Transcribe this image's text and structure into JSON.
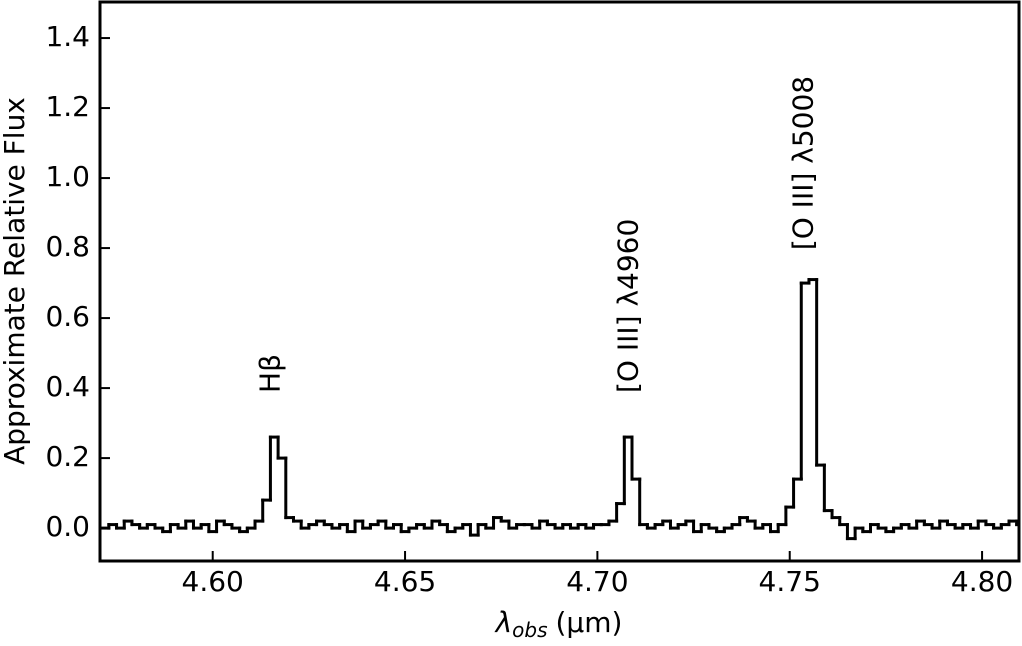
{
  "chart_data": {
    "type": "step",
    "ylabel": "Approximate Relative Flux",
    "xlabel": {
      "symbol": "λ",
      "subscript": "obs",
      "unit": "(μm)"
    },
    "x": [
      4.572,
      4.574,
      4.576,
      4.578,
      4.58,
      4.582,
      4.584,
      4.586,
      4.588,
      4.59,
      4.592,
      4.594,
      4.596,
      4.598,
      4.6,
      4.602,
      4.604,
      4.606,
      4.608,
      4.61,
      4.612,
      4.614,
      4.616,
      4.618,
      4.62,
      4.622,
      4.624,
      4.626,
      4.628,
      4.63,
      4.632,
      4.634,
      4.636,
      4.638,
      4.64,
      4.642,
      4.644,
      4.646,
      4.648,
      4.65,
      4.652,
      4.654,
      4.656,
      4.658,
      4.66,
      4.662,
      4.664,
      4.666,
      4.668,
      4.67,
      4.672,
      4.674,
      4.676,
      4.678,
      4.68,
      4.682,
      4.684,
      4.686,
      4.688,
      4.69,
      4.692,
      4.694,
      4.696,
      4.698,
      4.7,
      4.702,
      4.704,
      4.706,
      4.708,
      4.71,
      4.712,
      4.714,
      4.716,
      4.718,
      4.72,
      4.722,
      4.724,
      4.726,
      4.728,
      4.73,
      4.732,
      4.734,
      4.736,
      4.738,
      4.74,
      4.742,
      4.744,
      4.746,
      4.748,
      4.75,
      4.752,
      4.754,
      4.756,
      4.758,
      4.76,
      4.762,
      4.764,
      4.766,
      4.768,
      4.77,
      4.772,
      4.774,
      4.776,
      4.778,
      4.78,
      4.782,
      4.784,
      4.786,
      4.788,
      4.79,
      4.792,
      4.794,
      4.796,
      4.798,
      4.8,
      4.802,
      4.804,
      4.806,
      4.808,
      4.81
    ],
    "series": [
      {
        "color": "#000000",
        "values": [
          0.0,
          0.01,
          0.0,
          0.02,
          0.01,
          0.0,
          0.01,
          0.0,
          -0.01,
          0.01,
          0.0,
          0.02,
          0.0,
          0.01,
          -0.01,
          0.02,
          0.01,
          0.0,
          -0.01,
          0.0,
          0.02,
          0.08,
          0.26,
          0.2,
          0.03,
          0.02,
          0.0,
          0.01,
          0.02,
          0.01,
          0.0,
          0.01,
          -0.01,
          0.02,
          0.0,
          0.01,
          0.02,
          0.0,
          0.01,
          -0.01,
          0.0,
          0.01,
          0.0,
          0.02,
          0.01,
          -0.01,
          0.0,
          0.01,
          -0.02,
          0.01,
          0.0,
          0.03,
          0.02,
          0.0,
          0.01,
          0.01,
          0.0,
          0.02,
          0.01,
          0.0,
          0.01,
          0.0,
          0.01,
          0.0,
          0.01,
          0.01,
          0.02,
          0.07,
          0.26,
          0.14,
          0.01,
          0.0,
          0.01,
          0.02,
          0.0,
          0.01,
          0.02,
          -0.01,
          0.01,
          0.0,
          -0.01,
          0.0,
          0.01,
          0.03,
          0.02,
          0.0,
          0.01,
          -0.01,
          0.01,
          0.06,
          0.14,
          0.7,
          0.71,
          0.18,
          0.05,
          0.03,
          0.01,
          -0.03,
          0.0,
          -0.01,
          0.01,
          0.0,
          -0.01,
          0.0,
          0.01,
          0.0,
          0.02,
          0.01,
          0.0,
          0.02,
          0.01,
          0.0,
          0.01,
          0.0,
          0.02,
          0.01,
          0.0,
          0.01,
          0.02,
          0.01
        ]
      }
    ],
    "xlim": [
      4.5707,
      4.8096
    ],
    "ylim": [
      -0.094,
      1.503
    ],
    "xticks": [
      {
        "value": 4.6,
        "label": "4.60"
      },
      4.65,
      {
        "value": 4.7,
        "label": "4.70"
      },
      4.75,
      {
        "value": 4.8,
        "label": "4.80"
      }
    ],
    "yticks": [
      {
        "value": 0,
        "label": "0.0"
      },
      0.2,
      0.4,
      0.6,
      0.8,
      {
        "value": 1,
        "label": "1.0"
      },
      1.2,
      1.4
    ],
    "annotations": [
      {
        "text": "Hβ",
        "x": 4.6153,
        "y": 0.386
      },
      {
        "text": "[O III] λ4960",
        "x": 4.7083,
        "y": 0.386
      },
      {
        "text": "[O III] λ5008",
        "x": 4.7538,
        "y": 0.794
      }
    ]
  }
}
